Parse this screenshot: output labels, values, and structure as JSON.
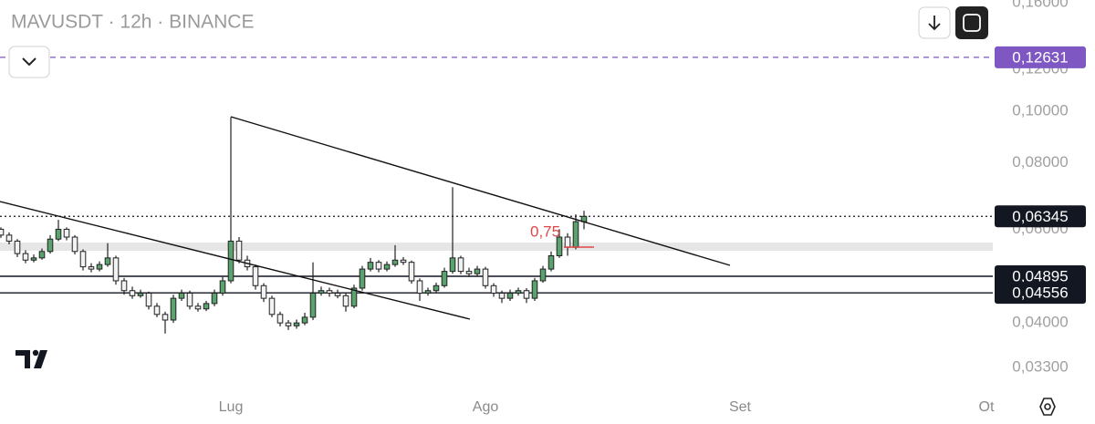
{
  "chart_data": {
    "type": "candlestick",
    "title": "MAVUSDT · 12h · BINANCE",
    "log_scale": true,
    "ylim": [
      0.03,
      0.16
    ],
    "yticks": [
      {
        "value": 0.16,
        "label": "0,16000"
      },
      {
        "value": 0.12,
        "label": "0,12000"
      },
      {
        "value": 0.1,
        "label": "0,10000"
      },
      {
        "value": 0.08,
        "label": "0,08000"
      },
      {
        "value": 0.06,
        "label": "0,06000"
      },
      {
        "value": 0.04,
        "label": "0,04000"
      },
      {
        "value": 0.033,
        "label": "0,03300"
      }
    ],
    "xlim": [
      0,
      121
    ],
    "xticks": [
      {
        "value": 28,
        "label": "Lug"
      },
      {
        "value": 59,
        "label": "Ago"
      },
      {
        "value": 90,
        "label": "Set"
      },
      {
        "value": 120,
        "label": "Ot"
      }
    ],
    "up_color": "#5aa36e",
    "down_color": "#f2f2f2",
    "candles": [
      [
        0.06,
        0.0605,
        0.0578,
        0.0585
      ],
      [
        0.0585,
        0.0592,
        0.0562,
        0.057
      ],
      [
        0.057,
        0.0575,
        0.0532,
        0.054
      ],
      [
        0.054,
        0.0548,
        0.0518,
        0.0525
      ],
      [
        0.0525,
        0.0538,
        0.052,
        0.053
      ],
      [
        0.053,
        0.0552,
        0.0526,
        0.0545
      ],
      [
        0.0545,
        0.0585,
        0.054,
        0.0575
      ],
      [
        0.0575,
        0.0625,
        0.057,
        0.06
      ],
      [
        0.06,
        0.0605,
        0.0572,
        0.058
      ],
      [
        0.058,
        0.0585,
        0.0538,
        0.0545
      ],
      [
        0.0545,
        0.055,
        0.0502,
        0.051
      ],
      [
        0.051,
        0.0518,
        0.0498,
        0.0505
      ],
      [
        0.0505,
        0.0522,
        0.05,
        0.0515
      ],
      [
        0.0515,
        0.0565,
        0.051,
        0.053
      ],
      [
        0.053,
        0.0535,
        0.0472,
        0.048
      ],
      [
        0.048,
        0.0486,
        0.0452,
        0.046
      ],
      [
        0.046,
        0.0468,
        0.0444,
        0.045
      ],
      [
        0.045,
        0.0462,
        0.0446,
        0.0455
      ],
      [
        0.0455,
        0.0458,
        0.0424,
        0.043
      ],
      [
        0.043,
        0.0436,
        0.041,
        0.0415
      ],
      [
        0.0415,
        0.042,
        0.0382,
        0.0405
      ],
      [
        0.0405,
        0.0452,
        0.04,
        0.0445
      ],
      [
        0.0445,
        0.0462,
        0.044,
        0.0455
      ],
      [
        0.0455,
        0.046,
        0.0424,
        0.043
      ],
      [
        0.043,
        0.0436,
        0.042,
        0.0425
      ],
      [
        0.0425,
        0.044,
        0.0421,
        0.0435
      ],
      [
        0.0435,
        0.0462,
        0.043,
        0.0455
      ],
      [
        0.0455,
        0.0488,
        0.045,
        0.048
      ],
      [
        0.048,
        0.0975,
        0.0475,
        0.057
      ],
      [
        0.057,
        0.058,
        0.0518,
        0.0525
      ],
      [
        0.0525,
        0.0535,
        0.0502,
        0.051
      ],
      [
        0.051,
        0.0515,
        0.0462,
        0.047
      ],
      [
        0.047,
        0.0475,
        0.0438,
        0.0445
      ],
      [
        0.0445,
        0.045,
        0.041,
        0.0415
      ],
      [
        0.0415,
        0.042,
        0.0394,
        0.04
      ],
      [
        0.04,
        0.0405,
        0.0388,
        0.0395
      ],
      [
        0.0395,
        0.0406,
        0.039,
        0.04
      ],
      [
        0.04,
        0.0418,
        0.0396,
        0.041
      ],
      [
        0.041,
        0.052,
        0.0405,
        0.0455
      ],
      [
        0.0455,
        0.0468,
        0.045,
        0.046
      ],
      [
        0.046,
        0.0466,
        0.0448,
        0.0455
      ],
      [
        0.0455,
        0.0462,
        0.0445,
        0.045
      ],
      [
        0.045,
        0.0455,
        0.042,
        0.043
      ],
      [
        0.043,
        0.0472,
        0.0426,
        0.0465
      ],
      [
        0.0465,
        0.0512,
        0.046,
        0.0505
      ],
      [
        0.0505,
        0.053,
        0.05,
        0.052
      ],
      [
        0.052,
        0.0525,
        0.0498,
        0.0505
      ],
      [
        0.0505,
        0.0522,
        0.05,
        0.0515
      ],
      [
        0.0515,
        0.056,
        0.051,
        0.0525
      ],
      [
        0.0525,
        0.0532,
        0.0514,
        0.052
      ],
      [
        0.052,
        0.0524,
        0.0474,
        0.048
      ],
      [
        0.048,
        0.0485,
        0.044,
        0.0455
      ],
      [
        0.0455,
        0.0466,
        0.045,
        0.046
      ],
      [
        0.046,
        0.0476,
        0.0455,
        0.047
      ],
      [
        0.047,
        0.0508,
        0.0466,
        0.05
      ],
      [
        0.05,
        0.072,
        0.0495,
        0.053
      ],
      [
        0.053,
        0.0535,
        0.0494,
        0.05
      ],
      [
        0.05,
        0.0508,
        0.0488,
        0.0495
      ],
      [
        0.0495,
        0.0512,
        0.049,
        0.0505
      ],
      [
        0.0505,
        0.051,
        0.0464,
        0.047
      ],
      [
        0.047,
        0.0475,
        0.0448,
        0.0455
      ],
      [
        0.0455,
        0.046,
        0.0436,
        0.0445
      ],
      [
        0.0445,
        0.0462,
        0.044,
        0.0455
      ],
      [
        0.0455,
        0.0466,
        0.045,
        0.046
      ],
      [
        0.046,
        0.0465,
        0.0436,
        0.0445
      ],
      [
        0.0445,
        0.0486,
        0.044,
        0.048
      ],
      [
        0.048,
        0.0512,
        0.0476,
        0.0505
      ],
      [
        0.0505,
        0.0545,
        0.05,
        0.0535
      ],
      [
        0.0535,
        0.06,
        0.053,
        0.058
      ],
      [
        0.058,
        0.059,
        0.0535,
        0.0555
      ],
      [
        0.0555,
        0.064,
        0.055,
        0.062
      ],
      [
        0.062,
        0.065,
        0.06,
        0.06345
      ]
    ],
    "levels": [
      {
        "value": 0.12631,
        "label": "0,12631",
        "color": "#7e57c2",
        "style": "dashed"
      },
      {
        "value": 0.06345,
        "label": "0,06345",
        "color": "#131722",
        "style": "dotted"
      },
      {
        "value": 0.04895,
        "label": "0,04895",
        "color": "#131722",
        "style": "solid"
      },
      {
        "value": 0.04556,
        "label": "0,04556",
        "color": "#131722",
        "style": "solid"
      }
    ],
    "annotation": "0,75"
  }
}
